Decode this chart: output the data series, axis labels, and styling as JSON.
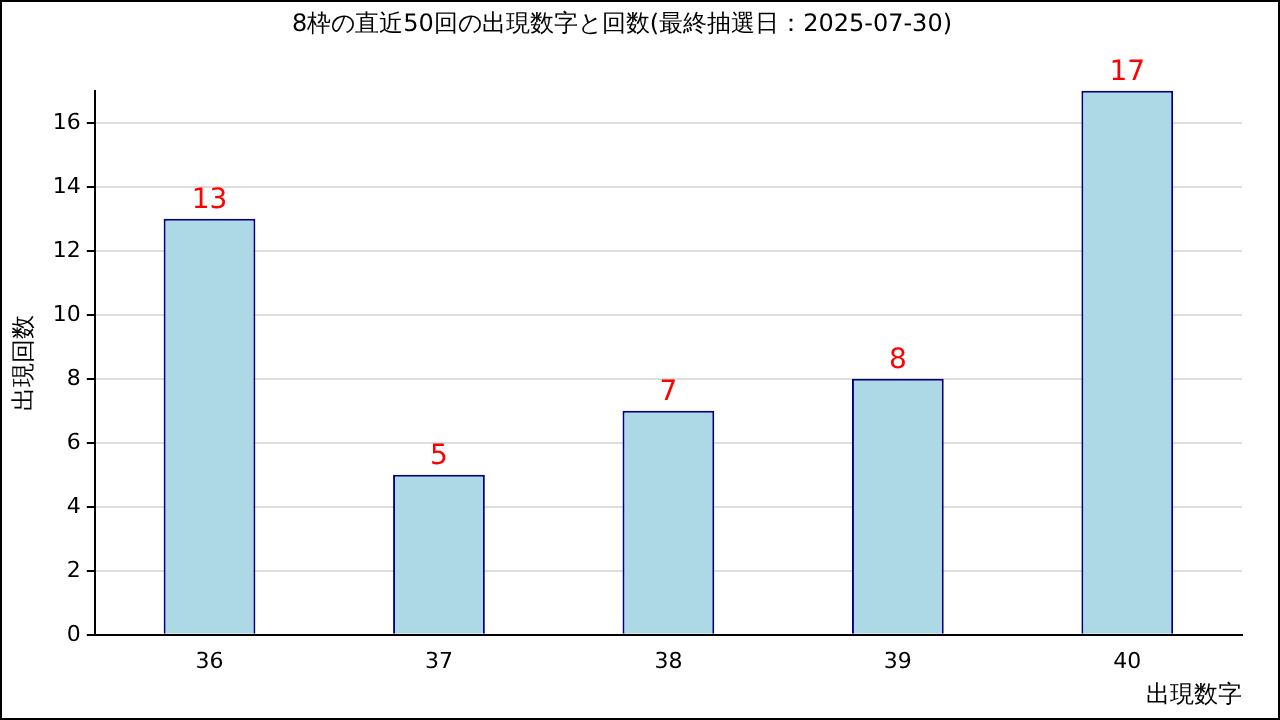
{
  "chart_data": {
    "type": "bar",
    "title": "8枠の直近50回の出現数字と回数(最終抽選日：2025-07-30)",
    "xlabel": "出現数字",
    "ylabel": "出現回数",
    "categories": [
      "36",
      "37",
      "38",
      "39",
      "40"
    ],
    "values": [
      13,
      5,
      7,
      8,
      17
    ],
    "color": "#add8e6",
    "ylim": [
      0,
      17
    ],
    "yticks": [
      0,
      2,
      4,
      6,
      8,
      10,
      12,
      14,
      16
    ],
    "grid": "y",
    "data_labels": true
  }
}
